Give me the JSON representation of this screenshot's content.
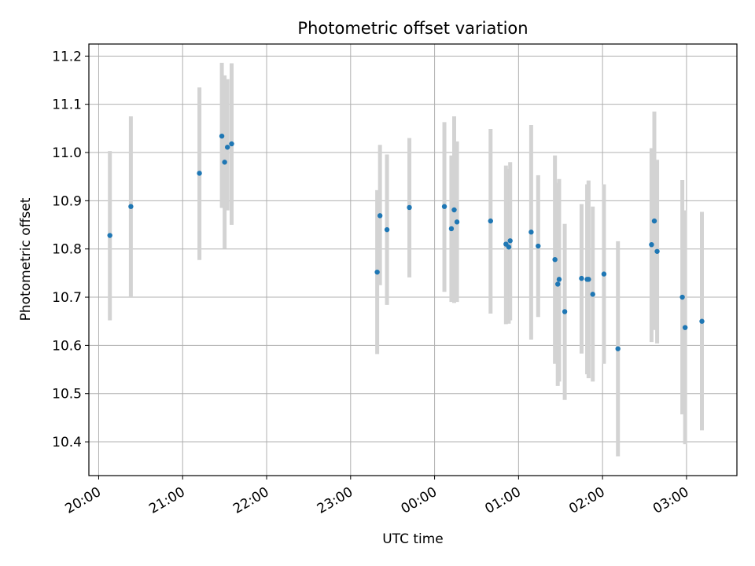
{
  "chart_data": {
    "type": "scatter",
    "title": "Photometric offset variation",
    "xlabel": "UTC time",
    "ylabel": "Photometric offset",
    "x_axis": {
      "kind": "time",
      "range": [
        "19:53",
        "03:36"
      ],
      "ticks": [
        "20:00",
        "21:00",
        "22:00",
        "23:00",
        "00:00",
        "01:00",
        "02:00",
        "03:00"
      ]
    },
    "ylim": [
      10.33,
      11.225
    ],
    "yticks": [
      "10.4",
      "10.5",
      "10.6",
      "10.7",
      "10.8",
      "10.9",
      "11.0",
      "11.1",
      "11.2"
    ],
    "grid": true,
    "marker_color": "#1f77b4",
    "errorbar_color": "#d3d3d3",
    "points": [
      {
        "time": "20:08",
        "y": 10.828,
        "ylow": 10.652,
        "yhigh": 11.003
      },
      {
        "time": "20:23",
        "y": 10.888,
        "ylow": 10.7,
        "yhigh": 11.075
      },
      {
        "time": "21:12",
        "y": 10.957,
        "ylow": 10.777,
        "yhigh": 11.135
      },
      {
        "time": "21:28",
        "y": 11.034,
        "ylow": 10.885,
        "yhigh": 11.186
      },
      {
        "time": "21:30",
        "y": 10.98,
        "ylow": 10.8,
        "yhigh": 11.16
      },
      {
        "time": "21:32",
        "y": 11.011,
        "ylow": 10.88,
        "yhigh": 11.152
      },
      {
        "time": "21:35",
        "y": 11.018,
        "ylow": 10.85,
        "yhigh": 11.185
      },
      {
        "time": "23:19",
        "y": 10.752,
        "ylow": 10.582,
        "yhigh": 10.922
      },
      {
        "time": "23:21",
        "y": 10.869,
        "ylow": 10.725,
        "yhigh": 11.016
      },
      {
        "time": "23:26",
        "y": 10.84,
        "ylow": 10.684,
        "yhigh": 10.996
      },
      {
        "time": "23:42",
        "y": 10.886,
        "ylow": 10.741,
        "yhigh": 11.03
      },
      {
        "time": "00:07",
        "y": 10.888,
        "ylow": 10.711,
        "yhigh": 11.063
      },
      {
        "time": "00:12",
        "y": 10.842,
        "ylow": 10.69,
        "yhigh": 10.994
      },
      {
        "time": "00:14",
        "y": 10.881,
        "ylow": 10.688,
        "yhigh": 11.075
      },
      {
        "time": "00:16",
        "y": 10.856,
        "ylow": 10.69,
        "yhigh": 11.023
      },
      {
        "time": "00:40",
        "y": 10.858,
        "ylow": 10.666,
        "yhigh": 11.049
      },
      {
        "time": "00:51",
        "y": 10.81,
        "ylow": 10.644,
        "yhigh": 10.973
      },
      {
        "time": "00:53",
        "y": 10.804,
        "ylow": 10.645,
        "yhigh": 10.966
      },
      {
        "time": "00:54",
        "y": 10.817,
        "ylow": 10.652,
        "yhigh": 10.98
      },
      {
        "time": "01:09",
        "y": 10.835,
        "ylow": 10.612,
        "yhigh": 11.057
      },
      {
        "time": "01:14",
        "y": 10.806,
        "ylow": 10.659,
        "yhigh": 10.953
      },
      {
        "time": "01:26",
        "y": 10.778,
        "ylow": 10.562,
        "yhigh": 10.994
      },
      {
        "time": "01:28",
        "y": 10.727,
        "ylow": 10.516,
        "yhigh": 10.937
      },
      {
        "time": "01:29",
        "y": 10.737,
        "ylow": 10.525,
        "yhigh": 10.945
      },
      {
        "time": "01:33",
        "y": 10.67,
        "ylow": 10.487,
        "yhigh": 10.852
      },
      {
        "time": "01:45",
        "y": 10.739,
        "ylow": 10.583,
        "yhigh": 10.893
      },
      {
        "time": "01:49",
        "y": 10.737,
        "ylow": 10.54,
        "yhigh": 10.934
      },
      {
        "time": "01:50",
        "y": 10.737,
        "ylow": 10.532,
        "yhigh": 10.942
      },
      {
        "time": "01:53",
        "y": 10.706,
        "ylow": 10.525,
        "yhigh": 10.888
      },
      {
        "time": "02:01",
        "y": 10.748,
        "ylow": 10.562,
        "yhigh": 10.934
      },
      {
        "time": "02:11",
        "y": 10.593,
        "ylow": 10.37,
        "yhigh": 10.816
      },
      {
        "time": "02:35",
        "y": 10.809,
        "ylow": 10.607,
        "yhigh": 11.009
      },
      {
        "time": "02:37",
        "y": 10.858,
        "ylow": 10.632,
        "yhigh": 11.085
      },
      {
        "time": "02:39",
        "y": 10.795,
        "ylow": 10.604,
        "yhigh": 10.985
      },
      {
        "time": "02:57",
        "y": 10.7,
        "ylow": 10.457,
        "yhigh": 10.943
      },
      {
        "time": "02:59",
        "y": 10.637,
        "ylow": 10.395,
        "yhigh": 10.88
      },
      {
        "time": "03:11",
        "y": 10.65,
        "ylow": 10.424,
        "yhigh": 10.877
      }
    ]
  }
}
